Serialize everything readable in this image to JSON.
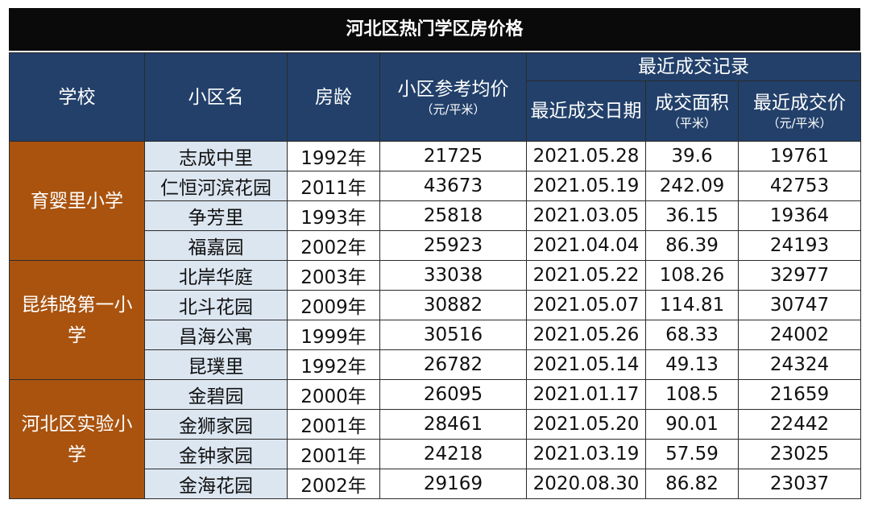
{
  "title": "河北区热门学区房价格",
  "header": {
    "school": "学校",
    "community": "小区名",
    "age": "房龄",
    "avg_price": "小区参考均价",
    "avg_price_unit": "（元/平米）",
    "recent": "最近成交记录",
    "date": "最近成交日期",
    "area": "成交面积",
    "area_unit": "（平米）",
    "price": "最近成交价",
    "price_unit": "（元/平米）"
  },
  "groups": [
    {
      "school": "育婴里小学",
      "rows": [
        [
          "志成中里",
          "1992年",
          21725,
          "2021.05.28",
          39.6,
          19761
        ],
        [
          "仁恒河滨花园",
          "2011年",
          43673,
          "2021.05.19",
          242.09,
          42753
        ],
        [
          "争芳里",
          "1993年",
          25818,
          "2021.03.05",
          36.15,
          19364
        ],
        [
          "福嘉园",
          "2002年",
          25923,
          "2021.04.04",
          86.39,
          24193
        ]
      ]
    },
    {
      "school": "昆纬路第一小学",
      "rows": [
        [
          "北岸华庭",
          "2003年",
          33038,
          "2021.05.22",
          108.26,
          32977
        ],
        [
          "北斗花园",
          "2009年",
          30882,
          "2021.05.07",
          114.81,
          30747
        ],
        [
          "昌海公寓",
          "1999年",
          30516,
          "2021.05.26",
          68.33,
          24002
        ],
        [
          "昆璞里",
          "1992年",
          26782,
          "2021.05.14",
          49.13,
          24324
        ]
      ]
    },
    {
      "school": "河北区实验小学",
      "rows": [
        [
          "金碧园",
          "2000年",
          26095,
          "2021.01.17",
          108.5,
          21659
        ],
        [
          "金狮家园",
          "2001年",
          28461,
          "2021.05.20",
          90.01,
          22442
        ],
        [
          "金钟家园",
          "2001年",
          24218,
          "2021.03.19",
          57.59,
          23025
        ],
        [
          "金海花园",
          "2002年",
          29169,
          "2020.08.30",
          86.82,
          23037
        ]
      ]
    }
  ]
}
